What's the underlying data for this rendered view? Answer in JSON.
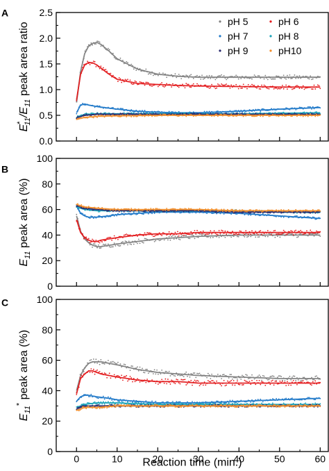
{
  "chart_data": [
    {
      "panel": "A",
      "type": "scatter",
      "xlabel": "",
      "ylabel_parts": [
        "E",
        "11",
        "*",
        "/E",
        "11",
        " peak area ratio"
      ],
      "xlim": [
        -5,
        62
      ],
      "ylim": [
        0.0,
        2.5
      ],
      "yticks": [
        "0.0",
        "0.5",
        "1.0",
        "1.5",
        "2.0",
        "2.5"
      ],
      "xticks": [
        0,
        10,
        20,
        30,
        40,
        50,
        60
      ],
      "grid": false,
      "legend": "top-right",
      "series": [
        {
          "name": "pH 5",
          "color": "#808080",
          "x": [
            0,
            1,
            2,
            3,
            4,
            5,
            6,
            8,
            10,
            15,
            20,
            25,
            30,
            40,
            50,
            60
          ],
          "y": [
            0.75,
            1.35,
            1.7,
            1.85,
            1.9,
            1.92,
            1.88,
            1.75,
            1.6,
            1.4,
            1.3,
            1.26,
            1.24,
            1.24,
            1.24,
            1.24
          ]
        },
        {
          "name": "pH 6",
          "color": "#e31a1c",
          "x": [
            0,
            1,
            2,
            3,
            4,
            5,
            6,
            8,
            10,
            15,
            20,
            25,
            30,
            40,
            50,
            60
          ],
          "y": [
            0.8,
            1.3,
            1.48,
            1.53,
            1.52,
            1.48,
            1.42,
            1.3,
            1.2,
            1.12,
            1.1,
            1.08,
            1.07,
            1.06,
            1.05,
            1.05
          ]
        },
        {
          "name": "pH 7",
          "color": "#1f78c8",
          "x": [
            0,
            1,
            2,
            3,
            5,
            8,
            10,
            15,
            20,
            25,
            30,
            40,
            50,
            60
          ],
          "y": [
            0.55,
            0.7,
            0.72,
            0.7,
            0.67,
            0.64,
            0.62,
            0.58,
            0.56,
            0.55,
            0.55,
            0.58,
            0.62,
            0.65
          ]
        },
        {
          "name": "pH 8",
          "color": "#17a2b8",
          "x": [
            0,
            2,
            5,
            10,
            20,
            30,
            40,
            50,
            60
          ],
          "y": [
            0.46,
            0.52,
            0.53,
            0.53,
            0.53,
            0.53,
            0.53,
            0.54,
            0.55
          ]
        },
        {
          "name": "pH 9",
          "color": "#2a2a6e",
          "x": [
            0,
            2,
            5,
            10,
            20,
            30,
            40,
            50,
            60
          ],
          "y": [
            0.45,
            0.5,
            0.52,
            0.52,
            0.52,
            0.52,
            0.52,
            0.52,
            0.52
          ]
        },
        {
          "name": "pH10",
          "color": "#f28e2b",
          "x": [
            0,
            2,
            5,
            10,
            20,
            30,
            40,
            50,
            60
          ],
          "y": [
            0.42,
            0.46,
            0.48,
            0.49,
            0.5,
            0.5,
            0.5,
            0.5,
            0.5
          ]
        }
      ]
    },
    {
      "panel": "B",
      "type": "scatter",
      "xlabel": "",
      "ylabel_parts": [
        "E",
        "11",
        "",
        " peak area (%)"
      ],
      "xlim": [
        -5,
        62
      ],
      "ylim": [
        0,
        100
      ],
      "yticks": [
        "0",
        "20",
        "40",
        "60",
        "80",
        "100"
      ],
      "xticks": [
        0,
        10,
        20,
        30,
        40,
        50,
        60
      ],
      "grid": false,
      "series": [
        {
          "name": "pH 5",
          "color": "#808080",
          "x": [
            0,
            1,
            2,
            3,
            4,
            5,
            6,
            8,
            10,
            15,
            20,
            25,
            30,
            40,
            50,
            60
          ],
          "y": [
            55,
            43,
            37,
            34,
            32,
            31,
            31,
            32,
            33,
            35,
            37,
            38,
            39,
            40,
            40,
            40
          ]
        },
        {
          "name": "pH 6",
          "color": "#e31a1c",
          "x": [
            0,
            1,
            2,
            3,
            4,
            5,
            6,
            8,
            10,
            15,
            20,
            25,
            30,
            40,
            50,
            60
          ],
          "y": [
            52,
            42,
            38,
            36,
            35,
            35,
            36,
            37,
            38,
            40,
            41,
            41,
            42,
            42,
            42,
            42
          ]
        },
        {
          "name": "pH 7",
          "color": "#1f78c8",
          "x": [
            0,
            1,
            2,
            3,
            5,
            8,
            10,
            15,
            20,
            25,
            30,
            40,
            50,
            60
          ],
          "y": [
            63,
            57,
            55,
            54,
            54,
            55,
            56,
            57,
            58,
            58,
            58,
            57,
            55,
            53
          ]
        },
        {
          "name": "pH 8",
          "color": "#17a2b8",
          "x": [
            0,
            2,
            5,
            10,
            20,
            30,
            40,
            50,
            60
          ],
          "y": [
            62,
            60,
            59,
            59,
            59,
            59,
            59,
            58,
            58
          ]
        },
        {
          "name": "pH 9",
          "color": "#2a2a6e",
          "x": [
            0,
            2,
            5,
            10,
            20,
            30,
            40,
            50,
            60
          ],
          "y": [
            63,
            61,
            60,
            59,
            59,
            59,
            58,
            58,
            58
          ]
        },
        {
          "name": "pH10",
          "color": "#f28e2b",
          "x": [
            0,
            2,
            5,
            10,
            20,
            30,
            40,
            50,
            60
          ],
          "y": [
            64,
            62,
            61,
            60,
            60,
            60,
            59,
            59,
            59
          ]
        }
      ]
    },
    {
      "panel": "C",
      "type": "scatter",
      "xlabel": "Reaction time (min.)",
      "ylabel_parts": [
        "E",
        "11",
        "*",
        " peak area (%)"
      ],
      "xlim": [
        -5,
        62
      ],
      "ylim": [
        0,
        100
      ],
      "yticks": [
        "0",
        "20",
        "40",
        "60",
        "80",
        "100"
      ],
      "xticks": [
        0,
        10,
        20,
        30,
        40,
        50,
        60
      ],
      "grid": false,
      "series": [
        {
          "name": "pH 5",
          "color": "#808080",
          "x": [
            0,
            1,
            2,
            3,
            4,
            5,
            6,
            8,
            10,
            15,
            20,
            25,
            30,
            40,
            50,
            60
          ],
          "y": [
            40,
            50,
            55,
            58,
            59,
            59,
            59,
            58,
            57,
            54,
            52,
            51,
            50,
            49,
            48,
            48
          ]
        },
        {
          "name": "pH 6",
          "color": "#e31a1c",
          "x": [
            0,
            1,
            2,
            3,
            4,
            5,
            6,
            8,
            10,
            15,
            20,
            25,
            30,
            40,
            50,
            60
          ],
          "y": [
            38,
            48,
            51,
            53,
            53,
            52,
            51,
            50,
            49,
            47,
            46,
            46,
            45,
            45,
            45,
            45
          ]
        },
        {
          "name": "pH 7",
          "color": "#1f78c8",
          "x": [
            0,
            1,
            2,
            3,
            5,
            8,
            10,
            15,
            20,
            25,
            30,
            40,
            50,
            60
          ],
          "y": [
            33,
            36,
            37,
            37,
            36,
            35,
            34,
            33,
            32,
            32,
            32,
            33,
            34,
            35
          ]
        },
        {
          "name": "pH 8",
          "color": "#17a2b8",
          "x": [
            0,
            2,
            5,
            10,
            20,
            30,
            40,
            50,
            60
          ],
          "y": [
            29,
            31,
            32,
            32,
            31,
            31,
            31,
            31,
            31
          ]
        },
        {
          "name": "pH 9",
          "color": "#2a2a6e",
          "x": [
            0,
            2,
            5,
            10,
            20,
            30,
            40,
            50,
            60
          ],
          "y": [
            28,
            30,
            30,
            30,
            30,
            30,
            30,
            30,
            30
          ]
        },
        {
          "name": "pH10",
          "color": "#f28e2b",
          "x": [
            0,
            2,
            5,
            10,
            20,
            30,
            40,
            50,
            60
          ],
          "y": [
            27,
            29,
            29,
            30,
            30,
            30,
            30,
            30,
            30
          ]
        }
      ]
    }
  ]
}
